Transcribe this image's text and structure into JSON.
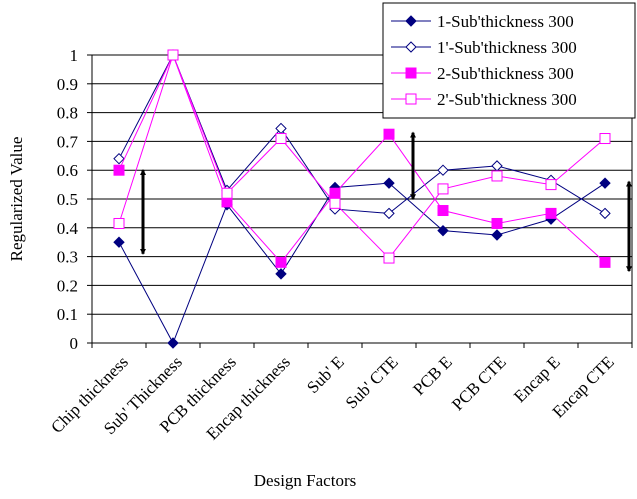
{
  "chart_data": {
    "type": "line",
    "title": "",
    "xlabel": "Design Factors",
    "ylabel": "Regularized Value",
    "ylim": [
      0,
      1
    ],
    "yticks": [
      "0",
      "0.1",
      "0.2",
      "0.3",
      "0.4",
      "0.5",
      "0.6",
      "0.7",
      "0.8",
      "0.9",
      "1"
    ],
    "categories": [
      "Chip thickness",
      "Sub' Thickness",
      "PCB thickness",
      "Encap thickness",
      "Sub' E",
      "Sub' CTE",
      "PCB E",
      "PCB CTE",
      "Encap E",
      "Encap CTE"
    ],
    "grid": "horizontal",
    "legend_position": "top-right",
    "series": [
      {
        "name": "1-Sub'thickness 300",
        "color": "#000080",
        "marker": "filled-diamond",
        "values": [
          0.35,
          0.0,
          0.48,
          0.24,
          0.54,
          0.555,
          0.39,
          0.375,
          0.43,
          0.555
        ]
      },
      {
        "name": "1'-Sub'thickness 300",
        "color": "#000080",
        "marker": "open-diamond",
        "values": [
          0.64,
          1.0,
          0.53,
          0.745,
          0.465,
          0.45,
          0.6,
          0.615,
          0.565,
          0.45
        ]
      },
      {
        "name": "2-Sub'thickness 300",
        "color": "#FF00FF",
        "marker": "filled-square",
        "values": [
          0.6,
          1.0,
          0.49,
          0.28,
          0.52,
          0.725,
          0.46,
          0.415,
          0.45,
          0.28
        ]
      },
      {
        "name": "2'-Sub'thickness 300",
        "color": "#FF00FF",
        "marker": "open-square",
        "values": [
          0.415,
          1.0,
          0.52,
          0.71,
          0.485,
          0.295,
          0.535,
          0.58,
          0.55,
          0.71
        ]
      }
    ],
    "annotations": [
      {
        "type": "double-arrow",
        "category": "Chip thickness",
        "from": 0.31,
        "to": 0.6
      },
      {
        "type": "double-arrow",
        "category": "Sub' CTE",
        "from": 0.5,
        "to": 0.73
      },
      {
        "type": "double-arrow",
        "category": "Encap CTE",
        "from": 0.25,
        "to": 0.56
      }
    ]
  }
}
